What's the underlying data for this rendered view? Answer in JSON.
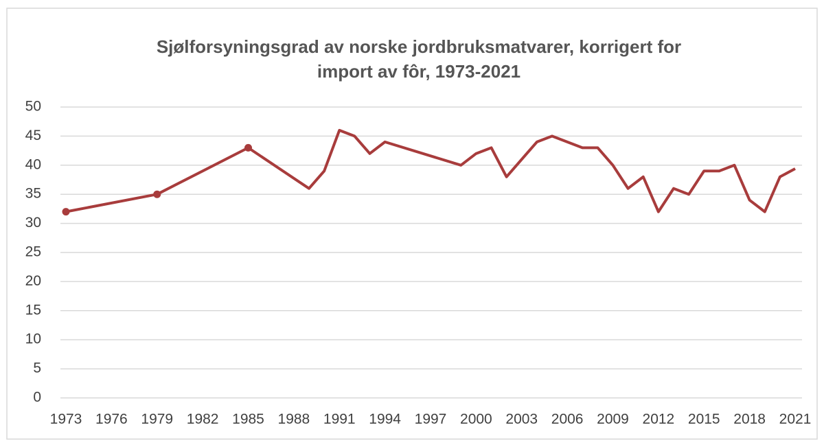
{
  "chart_data": {
    "type": "line",
    "title": [
      "Sjølforsyningsgrad av norske jordbruksmatvarer, korrigert for",
      "import av fôr, 1973-2021"
    ],
    "x": [
      1973,
      1979,
      1985,
      1989,
      1990,
      1991,
      1992,
      1993,
      1994,
      1999,
      2000,
      2001,
      2002,
      2004,
      2005,
      2007,
      2008,
      2009,
      2010,
      2011,
      2012,
      2013,
      2014,
      2015,
      2016,
      2017,
      2018,
      2019,
      2020,
      2021
    ],
    "series": [
      {
        "color": "#a83c3c",
        "marker_indices": [
          0,
          1,
          2
        ],
        "values": [
          32,
          35,
          43,
          36,
          39,
          46,
          45,
          42,
          44,
          40,
          42,
          43,
          38,
          44,
          45,
          43,
          43,
          40,
          36,
          38,
          32,
          36,
          35,
          39,
          39,
          40,
          34,
          32,
          38,
          39.4
        ]
      }
    ],
    "xlim": [
      1973,
      2021
    ],
    "xticks": [
      1973,
      1976,
      1979,
      1982,
      1985,
      1988,
      1991,
      1994,
      1997,
      2000,
      2003,
      2006,
      2009,
      2012,
      2015,
      2018,
      2021
    ],
    "ylim": [
      0,
      50
    ],
    "yticks": [
      0,
      5,
      10,
      15,
      20,
      25,
      30,
      35,
      40,
      45,
      50
    ],
    "grid": true
  }
}
